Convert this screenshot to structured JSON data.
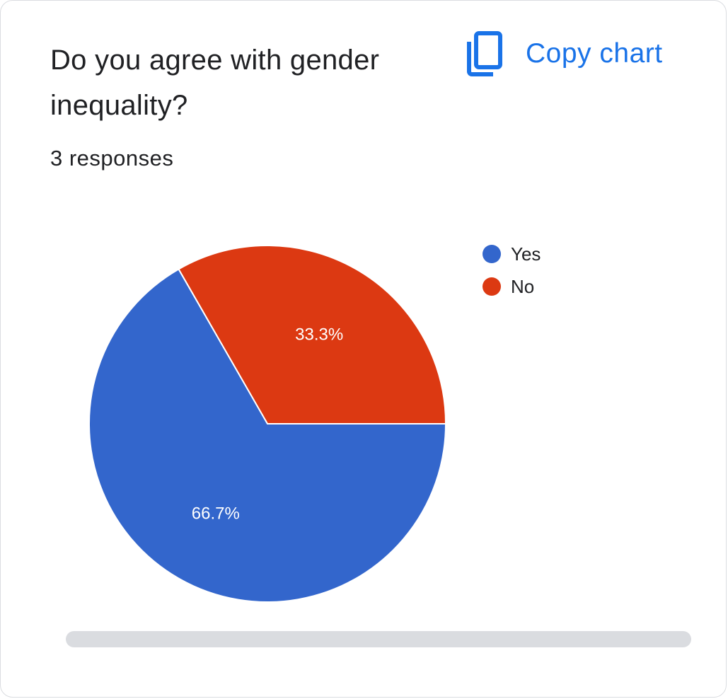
{
  "question": {
    "title": "Do you agree with gender inequality?",
    "responses_label": "3 responses"
  },
  "copy_chart": {
    "label": "Copy chart",
    "icon": "copy-icon",
    "color": "#1a73e8"
  },
  "chart_data": {
    "type": "pie",
    "title": "",
    "series": [
      {
        "name": "Yes",
        "value": 66.7,
        "label": "66.7%",
        "color": "#3366cc"
      },
      {
        "name": "No",
        "value": 33.3,
        "label": "33.3%",
        "color": "#dc3912"
      }
    ],
    "legend_position": "top-right"
  }
}
